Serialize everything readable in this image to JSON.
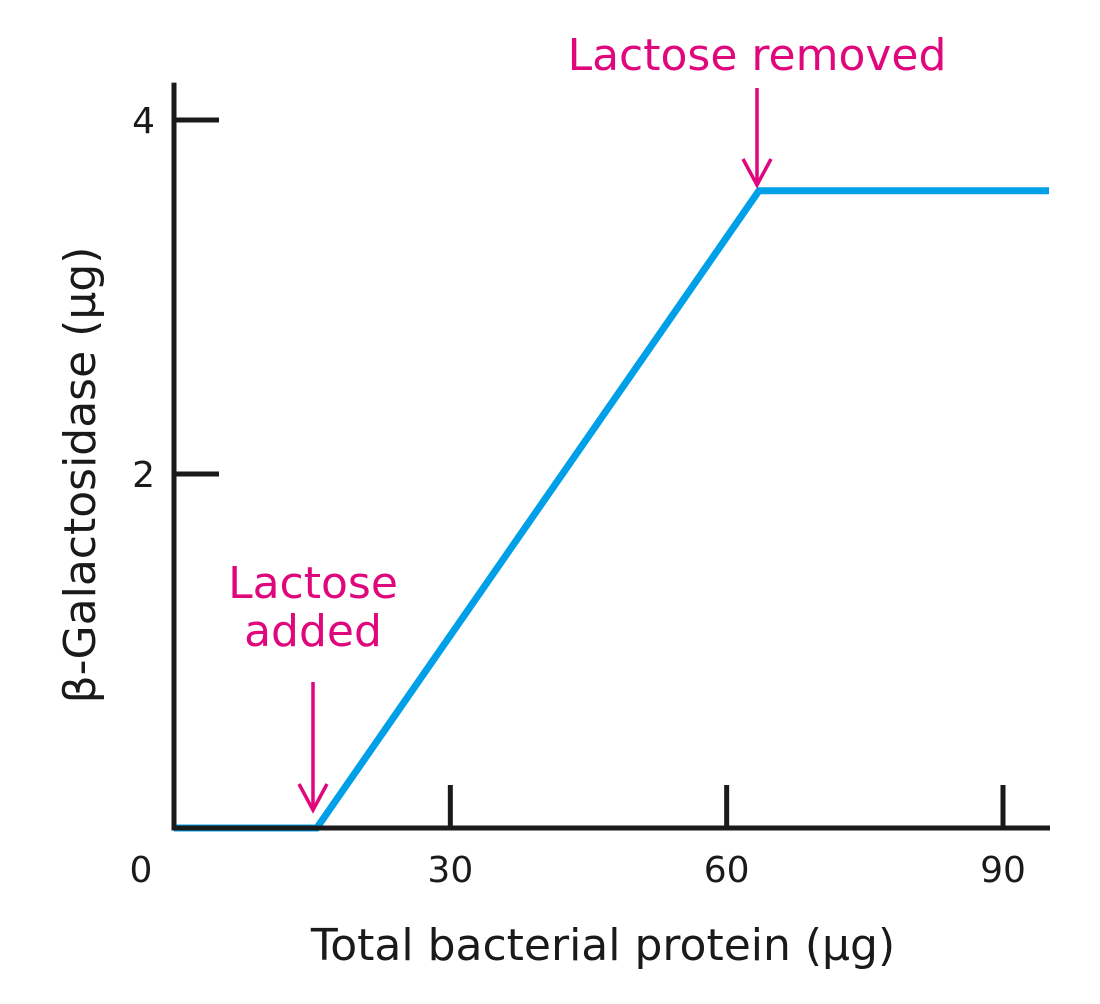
{
  "chart_data": {
    "type": "line",
    "title": "",
    "xlabel": "Total bacterial protein (μg)",
    "ylabel": "β-Galactosidase (μg)",
    "xlim": [
      0,
      95
    ],
    "ylim": [
      0,
      4.2
    ],
    "x_ticks": [
      0,
      30,
      60,
      90
    ],
    "x_tick_labels": [
      "0",
      "30",
      "60",
      "90"
    ],
    "y_ticks": [
      2,
      4
    ],
    "y_tick_labels": [
      "2",
      "4"
    ],
    "grid": false,
    "series": [
      {
        "color": "#00a0e9",
        "points": [
          {
            "x": 0,
            "y": 0
          },
          {
            "x": 15.5,
            "y": 0
          },
          {
            "x": 63.5,
            "y": 3.6
          },
          {
            "x": 95,
            "y": 3.6
          }
        ]
      }
    ],
    "annotations": [
      {
        "text": [
          "Lactose",
          "added"
        ],
        "x": 15.5,
        "y": 0,
        "color": "#e0077d"
      },
      {
        "text": [
          "Lactose removed"
        ],
        "x": 63.5,
        "y": 3.6,
        "color": "#e0077d"
      }
    ]
  }
}
